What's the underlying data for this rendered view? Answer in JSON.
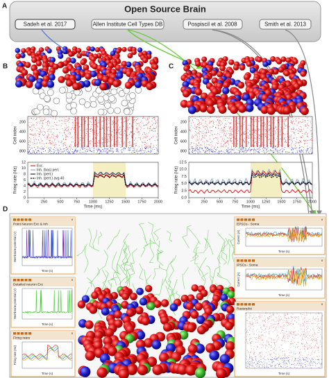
{
  "panel_labels": [
    "A",
    "B",
    "C",
    "D"
  ],
  "header": {
    "title": "Open Source Brain",
    "sources": [
      "Sadeh et al. 2017",
      "Allen Institute Cell Types DB",
      "Pospiscil et al. 2008",
      "Smith et al. 2013"
    ]
  },
  "panels": [
    {
      "raster": {
        "ylabel": "Cell index",
        "yticks": [
          "200",
          "400",
          "600",
          "800"
        ]
      },
      "rates": {
        "ylabel": "Firing rate (Hz)",
        "xlabel": "Time (ms)",
        "yticks": [
          "0",
          "2",
          "4",
          "6",
          "8",
          "10",
          "12"
        ],
        "xticks": [
          "0",
          "250",
          "500",
          "750",
          "1000",
          "1250",
          "1500",
          "1750",
          "2000"
        ],
        "legend": [
          "Exc.",
          "Inh. (bas) pert.",
          "Inh. (pert.)",
          "Inh. (pert.) avg 40"
        ]
      }
    },
    {
      "raster": {
        "ylabel": "Cell index",
        "yticks": [
          "200",
          "400",
          "600",
          "800"
        ]
      },
      "rates": {
        "ylabel": "Firing rate (Hz)",
        "xlabel": "Time (ms)",
        "yticks": [
          "0.0",
          "2.5",
          "5.0",
          "7.5",
          "10.0",
          "12.5"
        ],
        "xticks": [
          "0",
          "250",
          "500",
          "750",
          "1000",
          "1250",
          "1500",
          "1750",
          "2000"
        ]
      }
    }
  ],
  "dashboard": {
    "windows": [
      {
        "title": "Point Neuron Exc & Inh",
        "ylabel": "Membrane potential (V)",
        "xlabel": "Time (s)"
      },
      {
        "title": "Detailed neuron Exc",
        "ylabel": "Membrane potential (V)",
        "xlabel": "Time (s)"
      },
      {
        "title": "Firing rates",
        "ylabel": "Firing rate (Hz)",
        "xlabel": "Time (s)"
      },
      {
        "title": "EPSCs - Soma",
        "ylabel": "Current (A)",
        "xlabel": "Time (s)"
      },
      {
        "title": "IPSCs - Soma",
        "ylabel": "Current (A)",
        "xlabel": "Time (s)"
      },
      {
        "title": "Rasterplot",
        "ylabel": "",
        "xlabel": "Time (s)"
      }
    ]
  }
}
